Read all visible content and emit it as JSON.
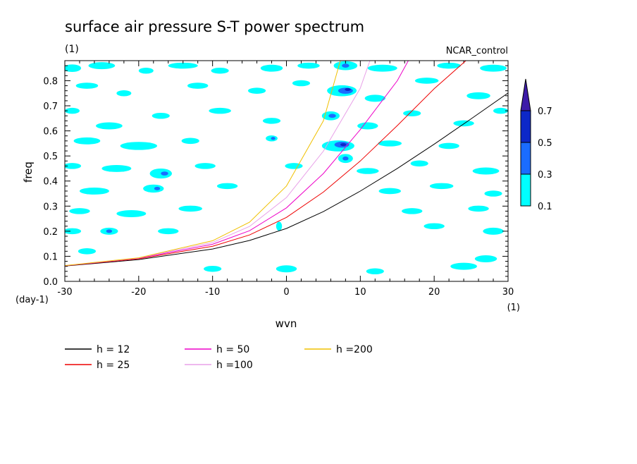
{
  "chart_data": {
    "type": "heatmap",
    "title": "surface air pressure S-T power spectrum",
    "subtitle_left": "(1)",
    "subtitle_right": "NCAR_control",
    "xlabel": "wvn",
    "ylabel": "freq",
    "x_unit": "(1)",
    "y_unit": "(day-1)",
    "xlim": [
      -30,
      30
    ],
    "ylim": [
      0.0,
      0.88
    ],
    "x_ticks": [
      -30,
      -20,
      -10,
      0,
      10,
      20,
      30
    ],
    "x_tick_labels": [
      "-30",
      "-20",
      "-10",
      "0",
      "10",
      "20",
      "30"
    ],
    "y_ticks": [
      0.0,
      0.1,
      0.2,
      0.3,
      0.4,
      0.5,
      0.6,
      0.7,
      0.8
    ],
    "y_tick_labels": [
      "0.0",
      "0.1",
      "0.2",
      "0.3",
      "0.4",
      "0.5",
      "0.6",
      "0.7",
      "0.8"
    ],
    "colorbar": {
      "levels": [
        "0.1",
        "0.3",
        "0.5",
        "0.7"
      ],
      "colors": [
        "#00ffff",
        "#1a6cff",
        "#0d28c8",
        "#3d1ba8"
      ],
      "extend": "max"
    },
    "contour_patches": [
      {
        "x": -29,
        "y": 0.85,
        "rx": 1.2,
        "ry": 0.015,
        "level": 0
      },
      {
        "x": -25,
        "y": 0.86,
        "rx": 1.8,
        "ry": 0.014,
        "level": 0
      },
      {
        "x": -19,
        "y": 0.84,
        "rx": 1.0,
        "ry": 0.012,
        "level": 0
      },
      {
        "x": -14,
        "y": 0.86,
        "rx": 2.0,
        "ry": 0.012,
        "level": 0
      },
      {
        "x": -9,
        "y": 0.84,
        "rx": 1.2,
        "ry": 0.012,
        "level": 0
      },
      {
        "x": -2,
        "y": 0.85,
        "rx": 1.5,
        "ry": 0.014,
        "level": 0
      },
      {
        "x": 3,
        "y": 0.86,
        "rx": 1.5,
        "ry": 0.012,
        "level": 0
      },
      {
        "x": 8,
        "y": 0.86,
        "rx": 1.6,
        "ry": 0.018,
        "level": 0
      },
      {
        "x": 8,
        "y": 0.86,
        "rx": 0.5,
        "ry": 0.008,
        "level": 1
      },
      {
        "x": 13,
        "y": 0.85,
        "rx": 2.0,
        "ry": 0.014,
        "level": 0
      },
      {
        "x": 22,
        "y": 0.86,
        "rx": 1.6,
        "ry": 0.012,
        "level": 0
      },
      {
        "x": 28,
        "y": 0.85,
        "rx": 1.8,
        "ry": 0.014,
        "level": 0
      },
      {
        "x": -27,
        "y": 0.78,
        "rx": 1.5,
        "ry": 0.012,
        "level": 0
      },
      {
        "x": -22,
        "y": 0.75,
        "rx": 1.0,
        "ry": 0.012,
        "level": 0
      },
      {
        "x": -12,
        "y": 0.78,
        "rx": 1.4,
        "ry": 0.012,
        "level": 0
      },
      {
        "x": -4,
        "y": 0.76,
        "rx": 1.2,
        "ry": 0.012,
        "level": 0
      },
      {
        "x": 2,
        "y": 0.79,
        "rx": 1.2,
        "ry": 0.012,
        "level": 0
      },
      {
        "x": 7.5,
        "y": 0.76,
        "rx": 2.0,
        "ry": 0.022,
        "level": 0
      },
      {
        "x": 8,
        "y": 0.76,
        "rx": 1.0,
        "ry": 0.012,
        "level": 1
      },
      {
        "x": 8.3,
        "y": 0.765,
        "rx": 0.4,
        "ry": 0.006,
        "level": 2
      },
      {
        "x": 12,
        "y": 0.73,
        "rx": 1.4,
        "ry": 0.014,
        "level": 0
      },
      {
        "x": 19,
        "y": 0.8,
        "rx": 1.6,
        "ry": 0.012,
        "level": 0
      },
      {
        "x": 26,
        "y": 0.74,
        "rx": 1.6,
        "ry": 0.014,
        "level": 0
      },
      {
        "x": -29,
        "y": 0.68,
        "rx": 1.0,
        "ry": 0.012,
        "level": 0
      },
      {
        "x": -24,
        "y": 0.62,
        "rx": 1.8,
        "ry": 0.014,
        "level": 0
      },
      {
        "x": -17,
        "y": 0.66,
        "rx": 1.2,
        "ry": 0.012,
        "level": 0
      },
      {
        "x": -9,
        "y": 0.68,
        "rx": 1.5,
        "ry": 0.012,
        "level": 0
      },
      {
        "x": -2,
        "y": 0.64,
        "rx": 1.2,
        "ry": 0.012,
        "level": 0
      },
      {
        "x": 6,
        "y": 0.66,
        "rx": 1.2,
        "ry": 0.018,
        "level": 0
      },
      {
        "x": 6.2,
        "y": 0.66,
        "rx": 0.5,
        "ry": 0.008,
        "level": 1
      },
      {
        "x": 11,
        "y": 0.62,
        "rx": 1.4,
        "ry": 0.014,
        "level": 0
      },
      {
        "x": 17,
        "y": 0.67,
        "rx": 1.2,
        "ry": 0.012,
        "level": 0
      },
      {
        "x": 24,
        "y": 0.63,
        "rx": 1.4,
        "ry": 0.012,
        "level": 0
      },
      {
        "x": 29,
        "y": 0.68,
        "rx": 1.0,
        "ry": 0.012,
        "level": 0
      },
      {
        "x": -27,
        "y": 0.56,
        "rx": 1.8,
        "ry": 0.014,
        "level": 0
      },
      {
        "x": -20,
        "y": 0.54,
        "rx": 2.5,
        "ry": 0.016,
        "level": 0
      },
      {
        "x": -13,
        "y": 0.56,
        "rx": 1.2,
        "ry": 0.012,
        "level": 0
      },
      {
        "x": -2,
        "y": 0.57,
        "rx": 0.8,
        "ry": 0.012,
        "level": 0
      },
      {
        "x": -1.8,
        "y": 0.57,
        "rx": 0.3,
        "ry": 0.006,
        "level": 1
      },
      {
        "x": 7,
        "y": 0.54,
        "rx": 2.2,
        "ry": 0.022,
        "level": 0
      },
      {
        "x": 7.5,
        "y": 0.545,
        "rx": 1.0,
        "ry": 0.012,
        "level": 1
      },
      {
        "x": 7.7,
        "y": 0.545,
        "rx": 0.4,
        "ry": 0.006,
        "level": 2
      },
      {
        "x": 8,
        "y": 0.49,
        "rx": 1.0,
        "ry": 0.018,
        "level": 0
      },
      {
        "x": 8,
        "y": 0.49,
        "rx": 0.4,
        "ry": 0.008,
        "level": 1
      },
      {
        "x": 14,
        "y": 0.55,
        "rx": 1.6,
        "ry": 0.012,
        "level": 0
      },
      {
        "x": 22,
        "y": 0.54,
        "rx": 1.4,
        "ry": 0.012,
        "level": 0
      },
      {
        "x": -29,
        "y": 0.46,
        "rx": 1.2,
        "ry": 0.012,
        "level": 0
      },
      {
        "x": -23,
        "y": 0.45,
        "rx": 2.0,
        "ry": 0.014,
        "level": 0
      },
      {
        "x": -17,
        "y": 0.43,
        "rx": 1.5,
        "ry": 0.02,
        "level": 0
      },
      {
        "x": -16.5,
        "y": 0.43,
        "rx": 0.5,
        "ry": 0.008,
        "level": 1
      },
      {
        "x": -11,
        "y": 0.46,
        "rx": 1.4,
        "ry": 0.012,
        "level": 0
      },
      {
        "x": 1,
        "y": 0.46,
        "rx": 1.2,
        "ry": 0.012,
        "level": 0
      },
      {
        "x": 11,
        "y": 0.44,
        "rx": 1.5,
        "ry": 0.012,
        "level": 0
      },
      {
        "x": 18,
        "y": 0.47,
        "rx": 1.2,
        "ry": 0.012,
        "level": 0
      },
      {
        "x": 27,
        "y": 0.44,
        "rx": 1.8,
        "ry": 0.014,
        "level": 0
      },
      {
        "x": -26,
        "y": 0.36,
        "rx": 2.0,
        "ry": 0.014,
        "level": 0
      },
      {
        "x": -18,
        "y": 0.37,
        "rx": 1.4,
        "ry": 0.016,
        "level": 0
      },
      {
        "x": -17.5,
        "y": 0.37,
        "rx": 0.4,
        "ry": 0.007,
        "level": 1
      },
      {
        "x": -8,
        "y": 0.38,
        "rx": 1.4,
        "ry": 0.012,
        "level": 0
      },
      {
        "x": 14,
        "y": 0.36,
        "rx": 1.5,
        "ry": 0.012,
        "level": 0
      },
      {
        "x": 21,
        "y": 0.38,
        "rx": 1.6,
        "ry": 0.012,
        "level": 0
      },
      {
        "x": 28,
        "y": 0.35,
        "rx": 1.2,
        "ry": 0.012,
        "level": 0
      },
      {
        "x": -28,
        "y": 0.28,
        "rx": 1.4,
        "ry": 0.012,
        "level": 0
      },
      {
        "x": -21,
        "y": 0.27,
        "rx": 2.0,
        "ry": 0.014,
        "level": 0
      },
      {
        "x": -13,
        "y": 0.29,
        "rx": 1.6,
        "ry": 0.012,
        "level": 0
      },
      {
        "x": 17,
        "y": 0.28,
        "rx": 1.4,
        "ry": 0.012,
        "level": 0
      },
      {
        "x": 26,
        "y": 0.29,
        "rx": 1.4,
        "ry": 0.012,
        "level": 0
      },
      {
        "x": -29,
        "y": 0.2,
        "rx": 1.2,
        "ry": 0.012,
        "level": 0
      },
      {
        "x": -24,
        "y": 0.2,
        "rx": 1.2,
        "ry": 0.014,
        "level": 0
      },
      {
        "x": -24,
        "y": 0.2,
        "rx": 0.4,
        "ry": 0.007,
        "level": 1
      },
      {
        "x": -16,
        "y": 0.2,
        "rx": 1.4,
        "ry": 0.012,
        "level": 0
      },
      {
        "x": -1,
        "y": 0.22,
        "rx": 0.4,
        "ry": 0.018,
        "level": 0
      },
      {
        "x": 20,
        "y": 0.22,
        "rx": 1.4,
        "ry": 0.012,
        "level": 0
      },
      {
        "x": 28,
        "y": 0.2,
        "rx": 1.4,
        "ry": 0.014,
        "level": 0
      },
      {
        "x": -27,
        "y": 0.12,
        "rx": 1.2,
        "ry": 0.012,
        "level": 0
      },
      {
        "x": -10,
        "y": 0.05,
        "rx": 1.2,
        "ry": 0.012,
        "level": 0
      },
      {
        "x": 0,
        "y": 0.05,
        "rx": 1.4,
        "ry": 0.014,
        "level": 0
      },
      {
        "x": 12,
        "y": 0.04,
        "rx": 1.2,
        "ry": 0.012,
        "level": 0
      },
      {
        "x": 24,
        "y": 0.06,
        "rx": 1.8,
        "ry": 0.014,
        "level": 0
      },
      {
        "x": 27,
        "y": 0.09,
        "rx": 1.5,
        "ry": 0.014,
        "level": 0
      }
    ],
    "series": [
      {
        "name": "h = 12",
        "color": "#000000",
        "x": [
          -30,
          -20,
          -10,
          -5,
          0,
          5,
          10,
          15,
          20,
          25,
          30
        ],
        "y": [
          0.061,
          0.087,
          0.129,
          0.163,
          0.211,
          0.278,
          0.36,
          0.45,
          0.547,
          0.648,
          0.751
        ]
      },
      {
        "name": "h = 25",
        "color": "#ee0000",
        "x": [
          -30,
          -20,
          -10,
          -5,
          0,
          5,
          10,
          15,
          20,
          24.3
        ],
        "y": [
          0.062,
          0.09,
          0.14,
          0.185,
          0.255,
          0.356,
          0.48,
          0.621,
          0.768,
          0.88
        ]
      },
      {
        "name": "h = 50",
        "color": "#ee00c8",
        "x": [
          -30,
          -20,
          -10,
          -5,
          0,
          5,
          10,
          15,
          16.5
        ],
        "y": [
          0.062,
          0.092,
          0.148,
          0.202,
          0.293,
          0.43,
          0.605,
          0.8,
          0.88
        ]
      },
      {
        "name": "h =100",
        "color": "#e8a0e8",
        "x": [
          -30,
          -20,
          -10,
          -5,
          0,
          5,
          10,
          11.3
        ],
        "y": [
          0.063,
          0.093,
          0.155,
          0.219,
          0.334,
          0.519,
          0.77,
          0.88
        ]
      },
      {
        "name": "h =200",
        "color": "#f0c000",
        "x": [
          -30,
          -20,
          -10,
          -5,
          0,
          5,
          7.3
        ],
        "y": [
          0.063,
          0.094,
          0.162,
          0.236,
          0.38,
          0.64,
          0.88
        ]
      }
    ]
  }
}
